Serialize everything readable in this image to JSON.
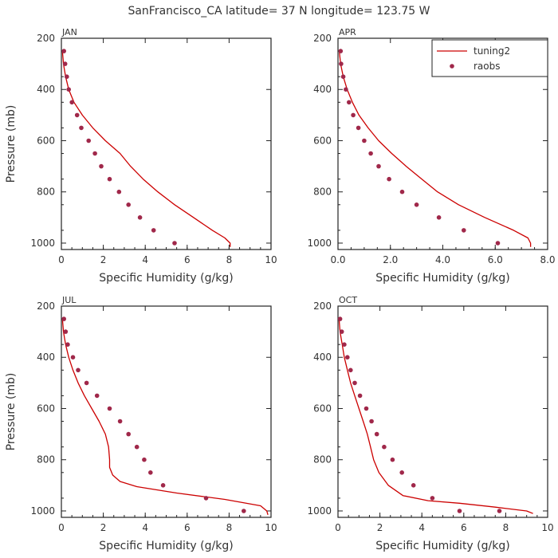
{
  "figure": {
    "title": "SanFrancisco_CA  latitude= 37 N longitude= 123.75 W"
  },
  "legend": {
    "placement": "top-right of APR panel",
    "entries": [
      {
        "label": "tuning2",
        "style": "line",
        "color": "#cc0000"
      },
      {
        "label": "raobs",
        "style": "dot",
        "color": "#a0284a"
      }
    ]
  },
  "colors": {
    "model_line": "#cc0000",
    "obs_dot": "#a0284a",
    "axis": "#222222"
  },
  "chart_data": [
    {
      "type": "line",
      "panel": "JAN",
      "xlabel": "Specific Humidity (g/kg)",
      "ylabel": "Pressure (mb)",
      "xlim": [
        0,
        10
      ],
      "ylim": [
        200,
        1025
      ],
      "y_inverted": true,
      "xticks": [
        0,
        2,
        4,
        6,
        8,
        10
      ],
      "xtick_labels": [
        "0",
        "2",
        "4",
        "6",
        "8",
        "10"
      ],
      "yticks": [
        200,
        400,
        600,
        800,
        1000
      ],
      "ytick_labels": [
        "200",
        "400",
        "600",
        "800",
        "1000"
      ],
      "series": [
        {
          "name": "tuning2",
          "style": "line",
          "x": [
            0.05,
            0.1,
            0.2,
            0.35,
            0.6,
            1.0,
            1.5,
            2.1,
            2.8,
            3.3,
            3.9,
            4.6,
            5.4,
            6.3,
            7.2,
            7.8,
            8.05,
            8.05
          ],
          "y": [
            250,
            300,
            350,
            400,
            450,
            500,
            550,
            600,
            650,
            700,
            750,
            800,
            850,
            900,
            950,
            980,
            1000,
            1015
          ]
        },
        {
          "name": "raobs",
          "style": "dot",
          "x": [
            0.12,
            0.18,
            0.26,
            0.35,
            0.5,
            0.75,
            0.95,
            1.3,
            1.6,
            1.9,
            2.3,
            2.75,
            3.2,
            3.75,
            4.4,
            5.4
          ],
          "y": [
            250,
            300,
            350,
            400,
            450,
            500,
            550,
            600,
            650,
            700,
            750,
            800,
            850,
            900,
            950,
            1000
          ]
        }
      ]
    },
    {
      "type": "line",
      "panel": "APR",
      "xlabel": "Specific Humidity (g/kg)",
      "ylabel": "",
      "xlim": [
        0,
        8
      ],
      "ylim": [
        200,
        1025
      ],
      "y_inverted": true,
      "xticks": [
        0,
        2,
        4,
        6,
        8
      ],
      "xtick_labels": [
        "0.0",
        "2.0",
        "4.0",
        "6.0",
        "8.0"
      ],
      "yticks": [
        200,
        400,
        600,
        800,
        1000
      ],
      "ytick_labels": [
        "200",
        "400",
        "600",
        "800",
        "1000"
      ],
      "series": [
        {
          "name": "tuning2",
          "style": "line",
          "x": [
            0.05,
            0.1,
            0.2,
            0.35,
            0.55,
            0.8,
            1.15,
            1.55,
            2.05,
            2.6,
            3.2,
            3.8,
            4.6,
            5.6,
            6.7,
            7.25,
            7.35,
            7.35
          ],
          "y": [
            250,
            300,
            350,
            400,
            450,
            500,
            550,
            600,
            650,
            700,
            750,
            800,
            850,
            900,
            950,
            980,
            1000,
            1015
          ]
        },
        {
          "name": "raobs",
          "style": "dot",
          "x": [
            0.1,
            0.12,
            0.2,
            0.3,
            0.42,
            0.58,
            0.78,
            1.0,
            1.25,
            1.55,
            1.95,
            2.45,
            3.0,
            3.85,
            4.8,
            6.1
          ],
          "y": [
            250,
            300,
            350,
            400,
            450,
            500,
            550,
            600,
            650,
            700,
            750,
            800,
            850,
            900,
            950,
            1000
          ]
        }
      ]
    },
    {
      "type": "line",
      "panel": "JUL",
      "xlabel": "Specific Humidity (g/kg)",
      "ylabel": "Pressure (mb)",
      "xlim": [
        0,
        10
      ],
      "ylim": [
        200,
        1025
      ],
      "y_inverted": true,
      "xticks": [
        0,
        2,
        4,
        6,
        8,
        10
      ],
      "xtick_labels": [
        "0",
        "2",
        "4",
        "6",
        "8",
        "10"
      ],
      "yticks": [
        200,
        400,
        600,
        800,
        1000
      ],
      "ytick_labels": [
        "200",
        "400",
        "600",
        "800",
        "1000"
      ],
      "series": [
        {
          "name": "tuning2",
          "style": "line",
          "x": [
            0.05,
            0.1,
            0.2,
            0.35,
            0.55,
            0.8,
            1.1,
            1.45,
            1.8,
            2.1,
            2.25,
            2.3,
            2.3,
            2.45,
            2.8,
            3.6,
            5.5,
            7.8,
            9.5,
            9.8,
            9.85
          ],
          "y": [
            250,
            300,
            350,
            400,
            450,
            500,
            550,
            600,
            650,
            700,
            750,
            800,
            830,
            860,
            885,
            905,
            930,
            955,
            980,
            1000,
            1015
          ]
        },
        {
          "name": "raobs",
          "style": "dot",
          "x": [
            0.12,
            0.2,
            0.3,
            0.55,
            0.8,
            1.2,
            1.7,
            2.3,
            2.8,
            3.2,
            3.6,
            3.95,
            4.25,
            4.85,
            6.9,
            8.7
          ],
          "y": [
            250,
            300,
            350,
            400,
            450,
            500,
            550,
            600,
            650,
            700,
            750,
            800,
            850,
            900,
            950,
            1000
          ]
        }
      ]
    },
    {
      "type": "line",
      "panel": "OCT",
      "xlabel": "Specific Humidity (g/kg)",
      "ylabel": "",
      "xlim": [
        0,
        10
      ],
      "ylim": [
        200,
        1025
      ],
      "y_inverted": true,
      "xticks": [
        0,
        2,
        4,
        6,
        8,
        10
      ],
      "xtick_labels": [
        "0",
        "2",
        "4",
        "6",
        "8",
        "10"
      ],
      "yticks": [
        200,
        400,
        600,
        800,
        1000
      ],
      "ytick_labels": [
        "200",
        "400",
        "600",
        "800",
        "1000"
      ],
      "series": [
        {
          "name": "tuning2",
          "style": "line",
          "x": [
            0.05,
            0.1,
            0.2,
            0.3,
            0.45,
            0.6,
            0.8,
            1.0,
            1.2,
            1.4,
            1.55,
            1.7,
            1.95,
            2.4,
            3.1,
            4.3,
            5.8,
            7.5,
            9.0,
            9.3
          ],
          "y": [
            250,
            300,
            350,
            400,
            450,
            500,
            550,
            600,
            650,
            700,
            750,
            800,
            850,
            900,
            940,
            960,
            970,
            985,
            1000,
            1010
          ]
        },
        {
          "name": "raobs",
          "style": "dot",
          "x": [
            0.1,
            0.18,
            0.3,
            0.45,
            0.6,
            0.8,
            1.05,
            1.35,
            1.6,
            1.85,
            2.2,
            2.6,
            3.05,
            3.6,
            4.5,
            5.8,
            7.7
          ],
          "y": [
            250,
            300,
            350,
            400,
            450,
            500,
            550,
            600,
            650,
            700,
            750,
            800,
            850,
            900,
            950,
            1000,
            1000
          ]
        }
      ]
    }
  ]
}
